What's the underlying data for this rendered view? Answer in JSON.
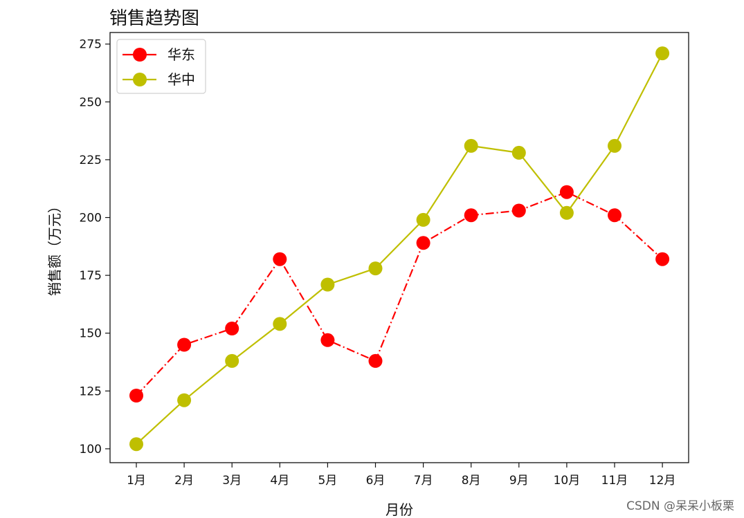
{
  "chart_data": {
    "type": "line",
    "title": "销售趋势图",
    "xlabel": "月份",
    "ylabel": "销售额（万元）",
    "categories": [
      "1月",
      "2月",
      "3月",
      "4月",
      "5月",
      "6月",
      "7月",
      "8月",
      "9月",
      "10月",
      "11月",
      "12月"
    ],
    "ylim": [
      94,
      280
    ],
    "yticks": [
      100,
      125,
      150,
      175,
      200,
      225,
      250,
      275
    ],
    "grid": false,
    "legend_position": "top-left",
    "series": [
      {
        "name": "华东",
        "color": "#ff0000",
        "line_style": "dash-dot",
        "marker": "circle",
        "values": [
          123,
          145,
          152,
          182,
          147,
          138,
          189,
          201,
          203,
          211,
          201,
          182
        ]
      },
      {
        "name": "华中",
        "color": "#bfbf00",
        "line_style": "solid",
        "marker": "circle",
        "values": [
          102,
          121,
          138,
          154,
          171,
          178,
          199,
          231,
          228,
          202,
          231,
          271
        ]
      }
    ]
  },
  "watermark": "CSDN @呆呆小板栗"
}
